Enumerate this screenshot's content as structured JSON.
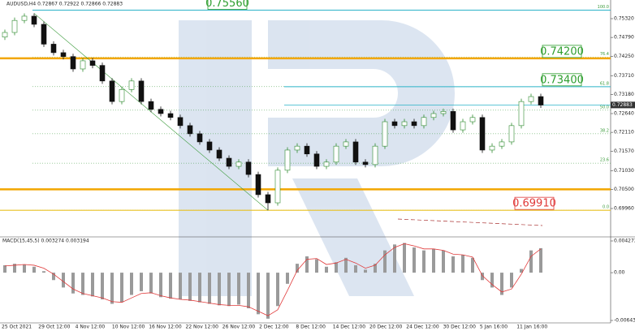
{
  "chart_data": {
    "type": "candlestick",
    "title": "AUDUSD,H4  0.72867 0.72922 0.72866 0.72883",
    "open": [
      0.748,
      0.7493,
      0.7527,
      0.7539,
      0.7516,
      0.746,
      0.7436,
      0.7425,
      0.739,
      0.7413,
      0.74,
      0.7356,
      0.7298,
      0.7332,
      0.7356,
      0.7298,
      0.7276,
      0.7264,
      0.7253,
      0.723,
      0.7207,
      0.7184,
      0.7161,
      0.7138,
      0.7115,
      0.7127,
      0.7092,
      0.7035,
      0.7012,
      0.7104,
      0.7161,
      0.7172,
      0.715,
      0.7115,
      0.7127,
      0.7172,
      0.7184,
      0.7127,
      0.712,
      0.7172,
      0.7241,
      0.723,
      0.7241,
      0.723,
      0.7253,
      0.7264,
      0.727,
      0.7218,
      0.7241,
      0.7253,
      0.7161,
      0.7172,
      0.7184,
      0.723,
      0.7298,
      0.7312
    ],
    "high": [
      0.7501,
      0.7535,
      0.7547,
      0.7547,
      0.7524,
      0.7468,
      0.7444,
      0.7433,
      0.7421,
      0.7421,
      0.7408,
      0.7364,
      0.734,
      0.7364,
      0.7364,
      0.7306,
      0.7284,
      0.7272,
      0.7261,
      0.7238,
      0.7215,
      0.7192,
      0.7169,
      0.7146,
      0.7135,
      0.7135,
      0.71,
      0.7043,
      0.7112,
      0.7169,
      0.718,
      0.718,
      0.7158,
      0.7135,
      0.718,
      0.7192,
      0.7192,
      0.7135,
      0.718,
      0.7249,
      0.7249,
      0.7249,
      0.7249,
      0.7261,
      0.7272,
      0.7278,
      0.7278,
      0.7249,
      0.7261,
      0.7261,
      0.718,
      0.7192,
      0.7238,
      0.7306,
      0.732,
      0.732
    ],
    "low": [
      0.7472,
      0.7485,
      0.7519,
      0.7508,
      0.7452,
      0.7428,
      0.7417,
      0.7382,
      0.7382,
      0.7392,
      0.7348,
      0.729,
      0.729,
      0.7324,
      0.729,
      0.7268,
      0.7256,
      0.7245,
      0.7222,
      0.7199,
      0.7176,
      0.7153,
      0.713,
      0.7107,
      0.7107,
      0.7084,
      0.7027,
      0.6991,
      0.7004,
      0.7096,
      0.7153,
      0.7142,
      0.7107,
      0.7107,
      0.7119,
      0.7164,
      0.7119,
      0.7112,
      0.7112,
      0.7164,
      0.7222,
      0.7222,
      0.7222,
      0.7222,
      0.7245,
      0.7256,
      0.721,
      0.721,
      0.7233,
      0.7153,
      0.7153,
      0.7164,
      0.7176,
      0.7222,
      0.729,
      0.728
    ],
    "close": [
      0.7493,
      0.7527,
      0.7539,
      0.7516,
      0.746,
      0.7436,
      0.7425,
      0.739,
      0.7413,
      0.74,
      0.7356,
      0.7298,
      0.7332,
      0.7356,
      0.7298,
      0.7276,
      0.7264,
      0.7253,
      0.723,
      0.7207,
      0.7184,
      0.7161,
      0.7138,
      0.7115,
      0.7127,
      0.7092,
      0.7035,
      0.7012,
      0.7104,
      0.7161,
      0.7172,
      0.715,
      0.7115,
      0.7127,
      0.7172,
      0.7184,
      0.7127,
      0.712,
      0.7172,
      0.7241,
      0.723,
      0.7241,
      0.723,
      0.7253,
      0.7264,
      0.727,
      0.7218,
      0.7241,
      0.7253,
      0.7161,
      0.7172,
      0.7184,
      0.723,
      0.7298,
      0.7312,
      0.7288
    ],
    "up_color": "#2e8b2e",
    "down_color": "#111111",
    "ylim": [
      0.69204,
      0.75778
    ],
    "yticks": [
      {
        "value": 0.7532,
        "label": "0.75320"
      },
      {
        "value": 0.7479,
        "label": "0.74790"
      },
      {
        "value": 0.7425,
        "label": "0.74250"
      },
      {
        "value": 0.7371,
        "label": "0.73710"
      },
      {
        "value": 0.7318,
        "label": "0.73180"
      },
      {
        "value": 0.7264,
        "label": "0.72640"
      },
      {
        "value": 0.7211,
        "label": "0.72110"
      },
      {
        "value": 0.7157,
        "label": "0.71570"
      },
      {
        "value": 0.7103,
        "label": "0.71030"
      },
      {
        "value": 0.705,
        "label": "0.70500"
      },
      {
        "value": 0.6996,
        "label": "0.69960"
      }
    ],
    "current_price": {
      "value": 0.72883,
      "label": "0.72883"
    },
    "fib_levels": [
      {
        "value": 0.7556,
        "label": "100.0"
      },
      {
        "value": 0.7423,
        "label": "76.4"
      },
      {
        "value": 0.734,
        "label": "61.8"
      },
      {
        "value": 0.72735,
        "label": "50.0"
      },
      {
        "value": 0.7207,
        "label": "38.2"
      },
      {
        "value": 0.7124,
        "label": "23.6"
      },
      {
        "value": 0.6991,
        "label": "0.0"
      }
    ],
    "levels": [
      {
        "value": 0.7556,
        "label": "0.75560",
        "style": "cyan",
        "color": "#2e9e2e"
      },
      {
        "value": 0.742,
        "label": "0.74200",
        "style": "orange",
        "color": "#2e9e2e"
      },
      {
        "value": 0.734,
        "label": "0.73400",
        "style": "cyan",
        "color": "#2e9e2e"
      },
      {
        "value": 0.705,
        "style": "orange"
      },
      {
        "value": 0.6991,
        "label": "0.69910",
        "style": "yellow",
        "color": "#e03a3a"
      }
    ],
    "x_labels": [
      "25 Oct 2021",
      "29 Oct 12:00",
      "4 Nov 12:00",
      "10 Nov 12:00",
      "16 Nov 12:00",
      "22 Nov 12:00",
      "26 Nov 12:00",
      "2 Dec 12:00",
      "8 Dec 12:00",
      "14 Dec 12:00",
      "20 Dec 12:00",
      "24 Dec 12:00",
      "30 Dec 12:00",
      "5 Jan 16:00",
      "11 Jan 16:00"
    ],
    "macd": {
      "title": "MACD(15,45,5) 0.003274 0.003194",
      "histogram": [
        0.001,
        0.0012,
        0.0011,
        0.0008,
        0.0002,
        -0.001,
        -0.002,
        -0.0028,
        -0.003,
        -0.0032,
        -0.0036,
        -0.0042,
        -0.004,
        -0.003,
        -0.0025,
        -0.0028,
        -0.0033,
        -0.0035,
        -0.0036,
        -0.0038,
        -0.004,
        -0.0042,
        -0.0044,
        -0.0045,
        -0.0043,
        -0.0048,
        -0.0056,
        -0.0062,
        -0.0045,
        -0.0015,
        0.0012,
        0.0022,
        0.0018,
        0.0008,
        0.0014,
        0.002,
        0.001,
        0.0004,
        0.0012,
        0.003,
        0.0038,
        0.004,
        0.0034,
        0.003,
        0.0032,
        0.003,
        0.0022,
        0.0024,
        0.002,
        -0.001,
        -0.002,
        -0.003,
        -0.002,
        0.0005,
        0.003,
        0.0033
      ],
      "signal": [
        0.0009,
        0.001,
        0.0011,
        0.001,
        0.0006,
        -0.0002,
        -0.0012,
        -0.0022,
        -0.0028,
        -0.0031,
        -0.0034,
        -0.0039,
        -0.004,
        -0.0034,
        -0.0028,
        -0.0027,
        -0.0031,
        -0.0034,
        -0.0036,
        -0.0037,
        -0.0039,
        -0.0041,
        -0.0043,
        -0.0044,
        -0.0044,
        -0.0046,
        -0.0052,
        -0.0058,
        -0.005,
        -0.0024,
        0.0003,
        0.0018,
        0.0019,
        0.0011,
        0.0013,
        0.0018,
        0.0013,
        0.0006,
        0.001,
        0.0024,
        0.0034,
        0.0039,
        0.0036,
        0.0032,
        0.0032,
        0.003,
        0.0025,
        0.0024,
        0.0021,
        -0.0004,
        -0.0016,
        -0.0026,
        -0.0022,
        -0.0002,
        0.0022,
        0.0032
      ],
      "histogram_color": "#9a9a9a",
      "signal_color": "#e03a3a",
      "ylim": [
        -0.006439,
        0.004273
      ],
      "yticks": [
        0.004273,
        {
          "value": 0,
          "label": "0.00"
        },
        -0.006439
      ]
    }
  }
}
